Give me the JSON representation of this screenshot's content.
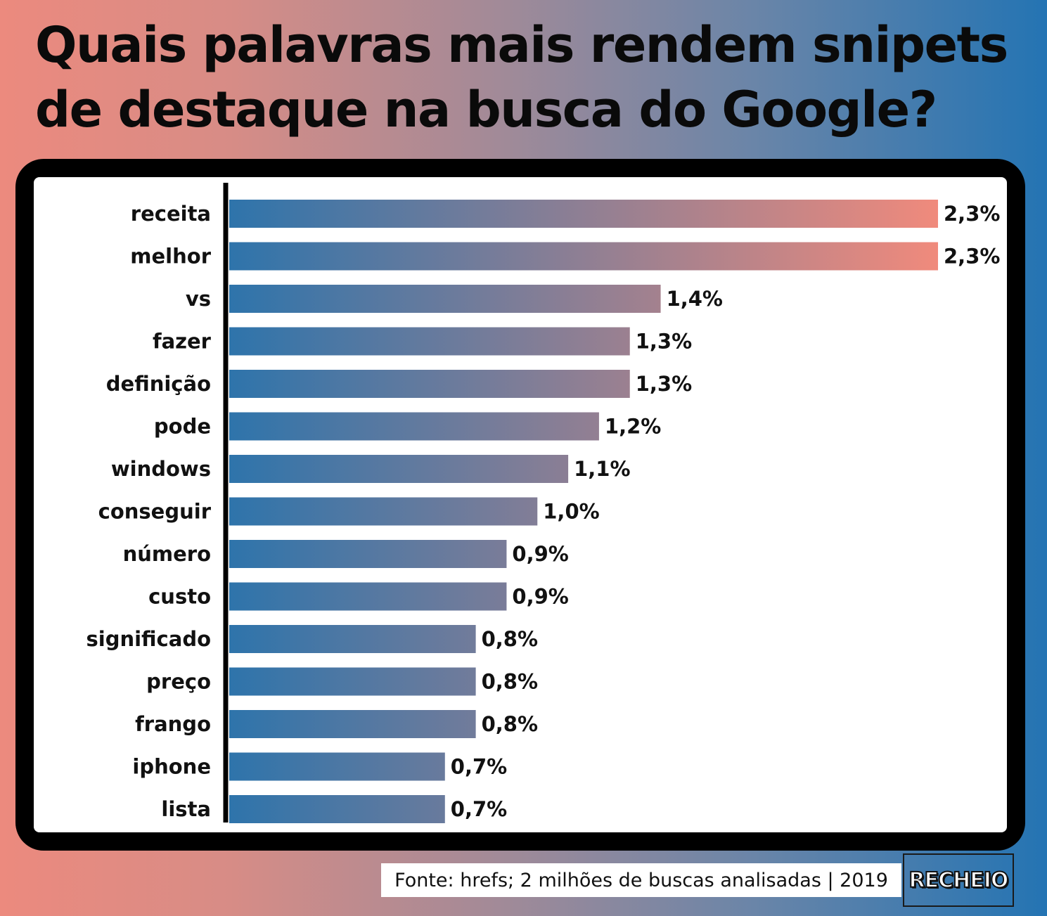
{
  "title": "Quais palavras mais rendem snipets de destaque na busca do Google?",
  "source": "Fonte: hrefs; 2 milhões de buscas analisadas | 2019",
  "logo": "RECHEIO",
  "colors": {
    "bar_start": "#2e74ab",
    "bar_end": "#f08a7c",
    "axis": "#000000",
    "frame": "#000000"
  },
  "chart_data": {
    "type": "bar",
    "orientation": "horizontal",
    "categories": [
      "receita",
      "melhor",
      "vs",
      "fazer",
      "definição",
      "pode",
      "windows",
      "conseguir",
      "número",
      "custo",
      "significado",
      "preço",
      "frango",
      "iphone",
      "lista"
    ],
    "values": [
      2.3,
      2.3,
      1.4,
      1.3,
      1.3,
      1.2,
      1.1,
      1.0,
      0.9,
      0.9,
      0.8,
      0.8,
      0.8,
      0.7,
      0.7
    ],
    "value_labels": [
      "2,3%",
      "2,3%",
      "1,4%",
      "1,3%",
      "1,3%",
      "1,2%",
      "1,1%",
      "1,0%",
      "0,9%",
      "0,9%",
      "0,8%",
      "0,8%",
      "0,8%",
      "0,7%",
      "0,7%"
    ],
    "unit": "%",
    "xlim": [
      0,
      2.3
    ],
    "grid": false,
    "legend": "none"
  }
}
